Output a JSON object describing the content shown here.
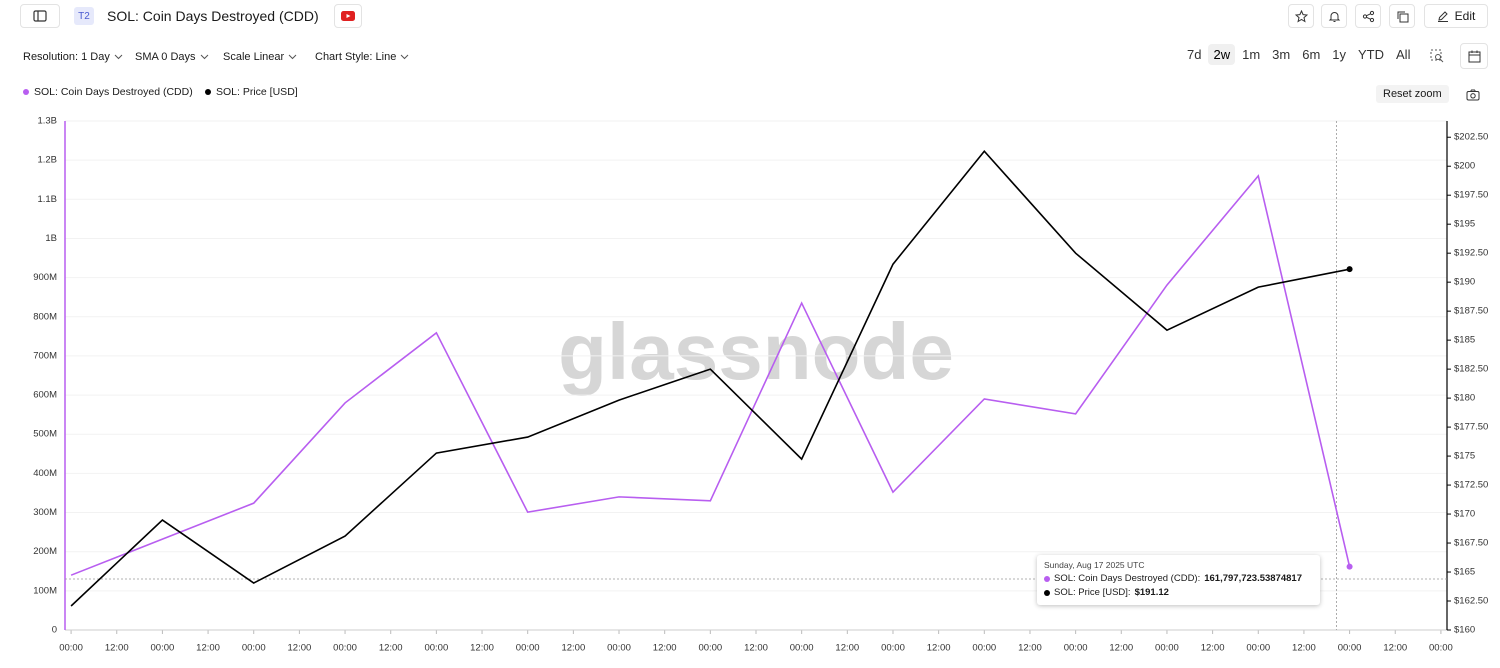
{
  "toolbar": {
    "badge": "T2",
    "title": "SOL: Coin Days Destroyed (CDD)",
    "edit": "Edit",
    "controls": [
      "Resolution: 1 Day",
      "SMA 0 Days",
      "Scale Linear",
      "Chart Style: Line"
    ],
    "ranges": [
      "7d",
      "2w",
      "1m",
      "3m",
      "6m",
      "1y",
      "YTD",
      "All"
    ],
    "reset_zoom": "Reset zoom"
  },
  "chart_data": {
    "type": "line",
    "watermark": "glassnode",
    "x": [
      0,
      24,
      48,
      72,
      96,
      120,
      144,
      168,
      192,
      216,
      240,
      264,
      288,
      312,
      336
    ],
    "xlim": [
      -1.6,
      361.6
    ],
    "xticks": [
      {
        "value": 0,
        "label": "00:00"
      },
      {
        "value": 12,
        "label": "12:00"
      },
      {
        "value": 24,
        "label": "00:00"
      },
      {
        "value": 36,
        "label": "12:00"
      },
      {
        "value": 48,
        "label": "00:00"
      },
      {
        "value": 60,
        "label": "12:00"
      },
      {
        "value": 72,
        "label": "00:00"
      },
      {
        "value": 84,
        "label": "12:00"
      },
      {
        "value": 96,
        "label": "00:00"
      },
      {
        "value": 108,
        "label": "12:00"
      },
      {
        "value": 120,
        "label": "00:00"
      },
      {
        "value": 132,
        "label": "12:00"
      },
      {
        "value": 144,
        "label": "00:00"
      },
      {
        "value": 156,
        "label": "12:00"
      },
      {
        "value": 168,
        "label": "00:00"
      },
      {
        "value": 180,
        "label": "12:00"
      },
      {
        "value": 192,
        "label": "00:00"
      },
      {
        "value": 204,
        "label": "12:00"
      },
      {
        "value": 216,
        "label": "00:00"
      },
      {
        "value": 228,
        "label": "12:00"
      },
      {
        "value": 240,
        "label": "00:00"
      },
      {
        "value": 252,
        "label": "12:00"
      },
      {
        "value": 264,
        "label": "00:00"
      },
      {
        "value": 276,
        "label": "12:00"
      },
      {
        "value": 288,
        "label": "00:00"
      },
      {
        "value": 300,
        "label": "12:00"
      },
      {
        "value": 312,
        "label": "00:00"
      },
      {
        "value": 324,
        "label": "12:00"
      },
      {
        "value": 336,
        "label": "00:00"
      },
      {
        "value": 348,
        "label": "12:00"
      },
      {
        "value": 360,
        "label": "00:00"
      }
    ],
    "ylim": [
      0,
      1300000000
    ],
    "yticks": [
      0,
      {
        "value": 100000000,
        "label": "100M"
      },
      {
        "value": 200000000,
        "label": "200M"
      },
      {
        "value": 300000000,
        "label": "300M"
      },
      {
        "value": 400000000,
        "label": "400M"
      },
      {
        "value": 500000000,
        "label": "500M"
      },
      {
        "value": 600000000,
        "label": "600M"
      },
      {
        "value": 700000000,
        "label": "700M"
      },
      {
        "value": 800000000,
        "label": "800M"
      },
      {
        "value": 900000000,
        "label": "900M"
      },
      {
        "value": 1000000000,
        "label": "1B"
      },
      {
        "value": 1100000000,
        "label": "1.1B"
      },
      {
        "value": 1200000000,
        "label": "1.2B"
      },
      {
        "value": 1300000000,
        "label": "1.3B"
      }
    ],
    "y2lim": [
      160,
      203.9
    ],
    "y2ticks": [
      {
        "value": 160,
        "label": "$160"
      },
      {
        "value": 162.5,
        "label": "$162.50"
      },
      {
        "value": 165,
        "label": "$165"
      },
      {
        "value": 167.5,
        "label": "$167.50"
      },
      {
        "value": 170,
        "label": "$170"
      },
      {
        "value": 172.5,
        "label": "$172.50"
      },
      {
        "value": 175,
        "label": "$175"
      },
      {
        "value": 177.5,
        "label": "$177.50"
      },
      {
        "value": 180,
        "label": "$180"
      },
      {
        "value": 182.5,
        "label": "$182.50"
      },
      {
        "value": 185,
        "label": "$185"
      },
      {
        "value": 187.5,
        "label": "$187.50"
      },
      {
        "value": 190,
        "label": "$190"
      },
      {
        "value": 192.5,
        "label": "$192.50"
      },
      {
        "value": 195,
        "label": "$195"
      },
      {
        "value": 197.5,
        "label": "$197.50"
      },
      {
        "value": 200,
        "label": "$200"
      },
      {
        "value": 202.5,
        "label": "$202.50"
      }
    ],
    "grid": true,
    "series": [
      {
        "name": "SOL: Coin Days Destroyed (CDD)",
        "color": "#b85ef0",
        "values": [
          140000000,
          232000000,
          324000000,
          580000000,
          759000000,
          301000000,
          340000000,
          330000000,
          835000000,
          352000000,
          590000000,
          552000000,
          881000000,
          1160000000,
          161797723.53874817
        ]
      },
      {
        "name": "SOL: Price [USD]",
        "color": "#000000",
        "axis": "y2",
        "values": [
          162.07,
          169.48,
          164.05,
          168.1,
          175.26,
          176.64,
          179.83,
          182.5,
          174.74,
          191.55,
          201.29,
          192.5,
          185.86,
          189.57,
          191.12
        ]
      }
    ],
    "tooltip": {
      "date": "Sunday, Aug 17 2025 UTC",
      "rows": [
        {
          "label": "SOL: Coin Days Destroyed (CDD):",
          "value": "161,797,723.53874817"
        },
        {
          "label": "SOL: Price [USD]:",
          "value": "$191.12"
        }
      ]
    }
  }
}
